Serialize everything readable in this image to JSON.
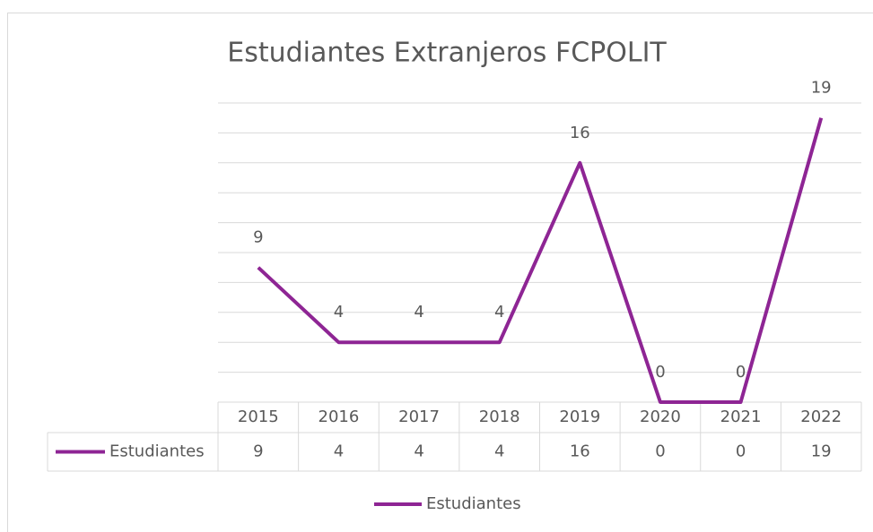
{
  "chart_data": {
    "type": "line",
    "title": "Estudiantes Extranjeros FCPOLIT",
    "categories": [
      "2015",
      "2016",
      "2017",
      "2018",
      "2019",
      "2020",
      "2021",
      "2022"
    ],
    "series": [
      {
        "name": "Estudiantes",
        "color": "#8e2594",
        "values": [
          9,
          4,
          4,
          4,
          16,
          0,
          0,
          19
        ]
      }
    ],
    "ylim": [
      0,
      20
    ],
    "yticks": [
      0,
      2,
      4,
      6,
      8,
      10,
      12,
      14,
      16,
      18,
      20
    ],
    "grid": true,
    "legend": "bottom"
  }
}
